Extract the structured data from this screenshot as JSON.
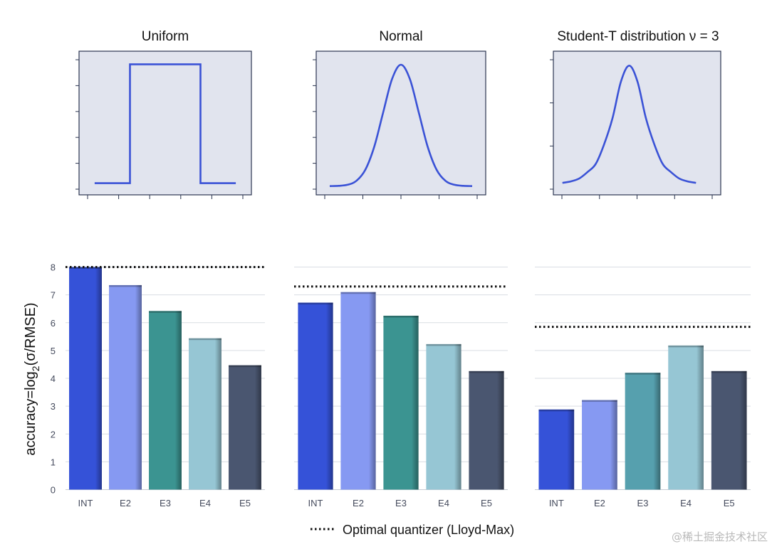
{
  "chart_data": [
    {
      "type": "line",
      "title": "Uniform",
      "series": [
        {
          "x": [
            -2.5,
            -1.5,
            -1.5,
            0.5,
            0.5,
            1.5
          ],
          "values": [
            0.0,
            0.0,
            1.0,
            1.0,
            0.0,
            0.0
          ]
        }
      ],
      "xlim": [
        -2.7,
        1.7
      ],
      "ylim": [
        -0.05,
        1.05
      ],
      "color": "#3a52d6",
      "grid": false,
      "background": "#e1e4ee"
    },
    {
      "type": "line",
      "title": "Normal",
      "series": [
        {
          "x": [
            -4.0,
            -3.5,
            -3.0,
            -2.5,
            -2.0,
            -1.5,
            -1.0,
            -0.5,
            0.0,
            0.5,
            1.0,
            1.5,
            2.0,
            2.5,
            3.0,
            3.5,
            4.0
          ],
          "values": [
            0.0001,
            0.0009,
            0.0044,
            0.0175,
            0.054,
            0.1295,
            0.242,
            0.3521,
            0.3989,
            0.3521,
            0.242,
            0.1295,
            0.054,
            0.0175,
            0.0044,
            0.0009,
            0.0001
          ]
        }
      ],
      "xlim": [
        -4.2,
        4.2
      ],
      "ylim": [
        -0.01,
        0.42
      ],
      "color": "#3a52d6",
      "grid": false,
      "background": "#e1e4ee"
    },
    {
      "type": "line",
      "title": "Student-T distribution ν = 3",
      "series": [
        {
          "x": [
            -4.0,
            -3.5,
            -3.0,
            -2.5,
            -2.0,
            -1.5,
            -1.0,
            -0.5,
            0.0,
            0.5,
            1.0,
            1.5,
            2.0,
            2.5,
            3.0,
            3.5,
            4.0
          ],
          "values": [
            0.0092,
            0.0137,
            0.0225,
            0.0422,
            0.0675,
            0.1274,
            0.2067,
            0.3183,
            0.3676,
            0.3183,
            0.2067,
            0.1274,
            0.0675,
            0.0422,
            0.0225,
            0.0137,
            0.0092
          ]
        }
      ],
      "xlim": [
        -4.2,
        4.2
      ],
      "ylim": [
        -0.01,
        0.39
      ],
      "color": "#3a52d6",
      "grid": false,
      "background": "#e1e4ee"
    },
    {
      "type": "bar",
      "categories": [
        "INT",
        "E2",
        "E3",
        "E4",
        "E5"
      ],
      "values": [
        8.0,
        7.35,
        6.42,
        5.44,
        4.47
      ],
      "colors": [
        "#3552d8",
        "#8699f2",
        "#3b9491",
        "#96c6d4",
        "#4a5670"
      ],
      "optimal": 8.0,
      "ylabel": "accuracy=log2(σ/RMSE)",
      "ylim": [
        0,
        8
      ],
      "yticks": [
        0,
        1,
        2,
        3,
        4,
        5,
        6,
        7,
        8
      ],
      "grid": true
    },
    {
      "type": "bar",
      "categories": [
        "INT",
        "E2",
        "E3",
        "E4",
        "E5"
      ],
      "values": [
        6.72,
        7.1,
        6.25,
        5.23,
        4.26
      ],
      "colors": [
        "#3552d8",
        "#8699f2",
        "#3b9491",
        "#96c6d4",
        "#4a5670"
      ],
      "optimal": 7.3,
      "ylim": [
        0,
        8
      ],
      "grid": true
    },
    {
      "type": "bar",
      "categories": [
        "INT",
        "E2",
        "E3",
        "E4",
        "E5"
      ],
      "values": [
        2.88,
        3.22,
        4.2,
        5.18,
        4.26
      ],
      "colors": [
        "#3552d8",
        "#8699f2",
        "#56a0ae",
        "#96c6d4",
        "#4a5670"
      ],
      "optimal": 5.85,
      "ylim": [
        0,
        8
      ],
      "grid": true
    }
  ],
  "legend": {
    "label": "Optimal quantizer (Lloyd-Max)",
    "placement": "bottom-center"
  },
  "ylabel": {
    "prefix": "accuracy=log",
    "sub": "2",
    "suffix": "(σ/RMSE)"
  },
  "watermark": "@稀土掘金技术社区",
  "colors": {
    "line": "#3a52d6",
    "panel": "#e1e4ee",
    "frame": "#2b3550",
    "grid": "#d9dde3"
  }
}
